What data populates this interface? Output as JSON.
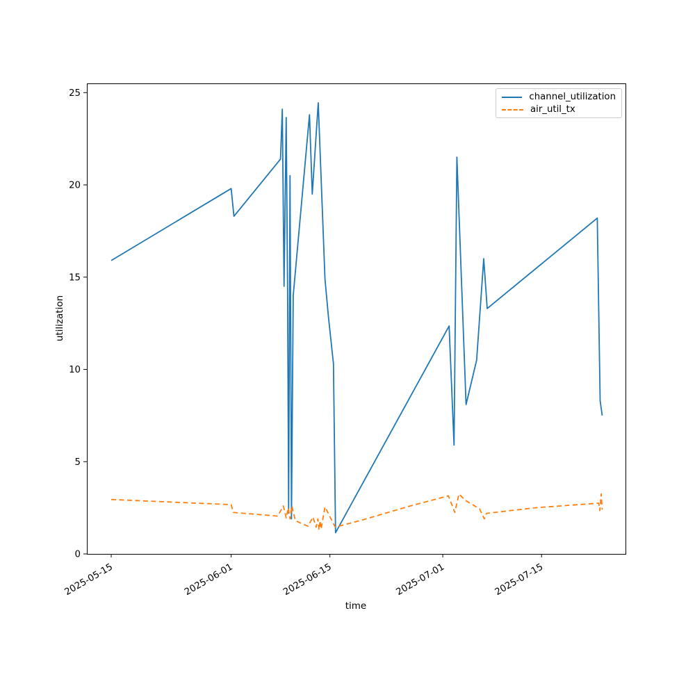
{
  "figure": {
    "background": "#ffffff"
  },
  "chart_data": {
    "type": "line",
    "title": "",
    "xlabel": "time",
    "ylabel": "utilization",
    "grid": false,
    "legend_position": "upper right",
    "x_axis": {
      "unit": "days since 2025-05-15",
      "lim": [
        -3.45,
        72.9
      ],
      "ticks": [
        {
          "pos": 0,
          "label": "2025-05-15"
        },
        {
          "pos": 17,
          "label": "2025-06-01"
        },
        {
          "pos": 31,
          "label": "2025-06-15"
        },
        {
          "pos": 47,
          "label": "2025-07-01"
        },
        {
          "pos": 61,
          "label": "2025-07-15"
        }
      ],
      "tick_rotation_deg": 30
    },
    "y_axis": {
      "lim": [
        0,
        25.5
      ],
      "ticks": [
        {
          "pos": 0,
          "label": "0"
        },
        {
          "pos": 5,
          "label": "5"
        },
        {
          "pos": 10,
          "label": "10"
        },
        {
          "pos": 15,
          "label": "15"
        },
        {
          "pos": 20,
          "label": "20"
        },
        {
          "pos": 25,
          "label": "25"
        }
      ]
    },
    "series": [
      {
        "name": "channel_utilization",
        "color": "#1f77b4",
        "style": "solid",
        "points": [
          [
            0,
            15.9
          ],
          [
            17,
            19.8
          ],
          [
            17.4,
            18.3
          ],
          [
            24.0,
            21.4
          ],
          [
            24.25,
            24.1
          ],
          [
            24.5,
            14.5
          ],
          [
            24.8,
            23.65
          ],
          [
            25.0,
            14.3
          ],
          [
            25.15,
            2.2
          ],
          [
            25.35,
            20.5
          ],
          [
            25.55,
            1.9
          ],
          [
            25.8,
            14.0
          ],
          [
            28.1,
            23.8
          ],
          [
            28.5,
            19.5
          ],
          [
            29.35,
            24.45
          ],
          [
            30.3,
            14.9
          ],
          [
            30.8,
            12.8
          ],
          [
            31.5,
            10.3
          ],
          [
            31.8,
            1.15
          ],
          [
            47.9,
            12.35
          ],
          [
            48.6,
            5.9
          ],
          [
            49.0,
            21.5
          ],
          [
            50.3,
            8.1
          ],
          [
            51.8,
            10.5
          ],
          [
            52.8,
            16.0
          ],
          [
            53.3,
            13.3
          ],
          [
            68.9,
            18.2
          ],
          [
            69.3,
            8.3
          ],
          [
            69.6,
            7.5
          ]
        ]
      },
      {
        "name": "air_util_tx",
        "color": "#ff7f0e",
        "style": "dashed",
        "points": [
          [
            0,
            2.95
          ],
          [
            17,
            2.67
          ],
          [
            17.3,
            2.25
          ],
          [
            23.6,
            2.05
          ],
          [
            24.4,
            2.6
          ],
          [
            24.8,
            1.95
          ],
          [
            25.1,
            2.5
          ],
          [
            25.35,
            1.9
          ],
          [
            25.6,
            2.6
          ],
          [
            26.1,
            1.8
          ],
          [
            27.9,
            1.5
          ],
          [
            28.6,
            2.0
          ],
          [
            29.05,
            1.45
          ],
          [
            29.3,
            1.9
          ],
          [
            29.45,
            1.3
          ],
          [
            29.6,
            1.8
          ],
          [
            29.75,
            1.35
          ],
          [
            30.3,
            2.55
          ],
          [
            31.75,
            1.45
          ],
          [
            35.5,
            1.83
          ],
          [
            42.4,
            2.6
          ],
          [
            47.8,
            3.15
          ],
          [
            48.7,
            2.25
          ],
          [
            49.3,
            3.25
          ],
          [
            50.2,
            2.9
          ],
          [
            52.2,
            2.45
          ],
          [
            52.9,
            1.9
          ],
          [
            53.2,
            2.2
          ],
          [
            60.1,
            2.5
          ],
          [
            69.1,
            2.75
          ],
          [
            69.25,
            2.35
          ],
          [
            69.45,
            3.25
          ],
          [
            69.6,
            2.4
          ]
        ]
      }
    ]
  }
}
